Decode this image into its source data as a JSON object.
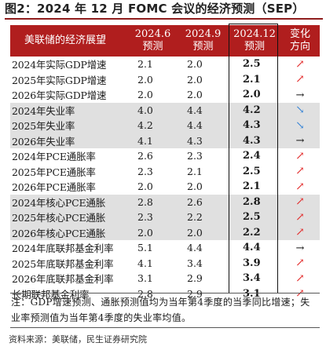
{
  "figure": {
    "title": "图2：2024 年 12 月 FOMC 会议的经济预测（SEP）",
    "source": "资料来源：美联储，民生证券研究院"
  },
  "table": {
    "headers": {
      "label": "美联储的经济展望",
      "c2024_6": {
        "line1": "2024.6",
        "line2": "预测"
      },
      "c2024_9": {
        "line1": "2024.9",
        "line2": "预测"
      },
      "c2024_12": {
        "line1": "2024.12",
        "line2": "预测"
      },
      "change": {
        "line1": "变化",
        "line2": "方向"
      }
    },
    "rows": [
      {
        "label": "2024年实际GDP增速",
        "jun": "2.1",
        "sep": "2.0",
        "dec": "2.5",
        "dir": "up",
        "shade": false
      },
      {
        "label": "2025年实际GDP增速",
        "jun": "2.0",
        "sep": "2.0",
        "dec": "2.1",
        "dir": "up",
        "shade": false
      },
      {
        "label": "2026年实际GDP增速",
        "jun": "2.0",
        "sep": "2.0",
        "dec": "2.0",
        "dir": "flat",
        "shade": false
      },
      {
        "label": "2024年失业率",
        "jun": "4.0",
        "sep": "4.4",
        "dec": "4.2",
        "dir": "down",
        "shade": true
      },
      {
        "label": "2025年失业率",
        "jun": "4.2",
        "sep": "4.4",
        "dec": "4.3",
        "dir": "down",
        "shade": true
      },
      {
        "label": "2026年失业率",
        "jun": "4.1",
        "sep": "4.3",
        "dec": "4.3",
        "dir": "flat",
        "shade": true
      },
      {
        "label": "2024年PCE通胀率",
        "jun": "2.6",
        "sep": "2.3",
        "dec": "2.4",
        "dir": "up",
        "shade": false
      },
      {
        "label": "2025年PCE通胀率",
        "jun": "2.3",
        "sep": "2.1",
        "dec": "2.5",
        "dir": "up",
        "shade": false
      },
      {
        "label": "2026年PCE通胀率",
        "jun": "2.0",
        "sep": "2.0",
        "dec": "2.1",
        "dir": "up",
        "shade": false
      },
      {
        "label": "2024年核心PCE通胀",
        "jun": "2.8",
        "sep": "2.6",
        "dec": "2.8",
        "dir": "up",
        "shade": true
      },
      {
        "label": "2025年核心PCE通胀",
        "jun": "2.3",
        "sep": "2.2",
        "dec": "2.5",
        "dir": "up",
        "shade": true
      },
      {
        "label": "2026年核心PCE通胀",
        "jun": "2.0",
        "sep": "2.0",
        "dec": "2.2",
        "dir": "up",
        "shade": true
      },
      {
        "label": "2024年底联邦基金利率",
        "jun": "5.1",
        "sep": "4.4",
        "dec": "4.4",
        "dir": "flat",
        "shade": false
      },
      {
        "label": "2025年底联邦基金利率",
        "jun": "4.1",
        "sep": "3.4",
        "dec": "3.9",
        "dir": "up",
        "shade": false
      },
      {
        "label": "2026年底联邦基金利率",
        "jun": "3.1",
        "sep": "2.9",
        "dec": "3.4",
        "dir": "up",
        "shade": false
      },
      {
        "label": "长期联邦基金利率",
        "jun": "2.8",
        "sep": "2.9",
        "dec": "3.1",
        "dir": "up",
        "shade": false
      }
    ]
  },
  "arrows": {
    "up": {
      "glyph": "↗",
      "icon": "arrow-up-right-icon",
      "color": "#e33232"
    },
    "down": {
      "glyph": "↘",
      "icon": "arrow-down-right-icon",
      "color": "#3a86d6"
    },
    "flat": {
      "glyph": "→",
      "icon": "arrow-right-icon",
      "color": "#111111"
    }
  },
  "note": "注：GDP增速预测、通胀预测值均为当年第4季度的当季同比增速；失业率预测值为当年第4季度的失业率均值。",
  "colors": {
    "header_bg": "#b01e1e",
    "shade_bg": "#e0e0e0",
    "accent": "#8f1d1d"
  }
}
